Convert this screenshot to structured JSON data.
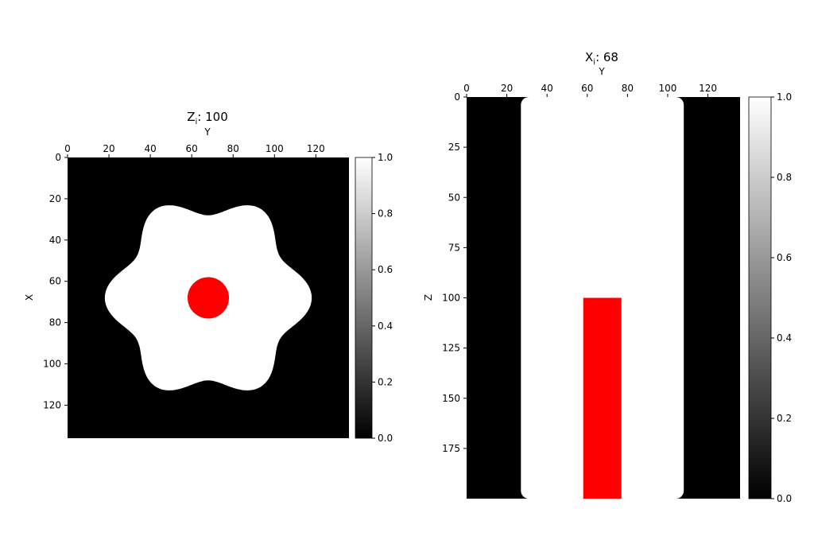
{
  "figure": {
    "background": "#ffffff"
  },
  "colors": {
    "shape": "#ffffff",
    "background": "#000000",
    "marker": "#ff0000"
  },
  "chart_data": [
    {
      "type": "heatmap",
      "title_main": "Z",
      "title_sub": "i",
      "title_rest": ": 100",
      "xlabel": "Y",
      "ylabel": "X",
      "x_ticks": [
        0,
        20,
        40,
        60,
        80,
        100,
        120
      ],
      "y_ticks": [
        0,
        20,
        40,
        60,
        80,
        100,
        120
      ],
      "x_tick_labels": [
        "0",
        "20",
        "40",
        "60",
        "80",
        "100",
        "120"
      ],
      "y_tick_labels": [
        "0",
        "20",
        "40",
        "60",
        "80",
        "100",
        "120"
      ],
      "xlim": [
        0,
        136
      ],
      "ylim": [
        0,
        136
      ],
      "shape": {
        "kind": "six-lobed star",
        "center": [
          68,
          68
        ],
        "outer_radius": 50,
        "inner_radius": 40,
        "lobes": 6
      },
      "marker": {
        "kind": "disc",
        "center": [
          68,
          68
        ],
        "radius": 10,
        "color": "#ff0000"
      },
      "colorbar": {
        "ticks": [
          "0.0",
          "0.2",
          "0.4",
          "0.6",
          "0.8",
          "1.0"
        ],
        "min": 0.0,
        "max": 1.0,
        "colormap": "gray"
      }
    },
    {
      "type": "heatmap",
      "title_main": "X",
      "title_sub": "i",
      "title_rest": ": 68",
      "xlabel": "Y",
      "ylabel": "Z",
      "x_ticks": [
        0,
        20,
        40,
        60,
        80,
        100,
        120
      ],
      "y_ticks": [
        0,
        25,
        50,
        75,
        100,
        125,
        150,
        175
      ],
      "x_tick_labels": [
        "0",
        "20",
        "40",
        "60",
        "80",
        "100",
        "120"
      ],
      "y_tick_labels": [
        "0",
        "25",
        "50",
        "75",
        "100",
        "125",
        "150",
        "175"
      ],
      "xlim": [
        0,
        136
      ],
      "ylim": [
        0,
        200
      ],
      "shape": {
        "kind": "rounded rectangle",
        "y_range": [
          27,
          108
        ],
        "z_range": [
          0,
          200
        ]
      },
      "marker": {
        "kind": "bar",
        "y_range": [
          58,
          77
        ],
        "z_range": [
          100,
          200
        ],
        "color": "#ff0000"
      },
      "colorbar": {
        "ticks": [
          "0.0",
          "0.2",
          "0.4",
          "0.6",
          "0.8",
          "1.0"
        ],
        "min": 0.0,
        "max": 1.0,
        "colormap": "gray"
      }
    }
  ]
}
